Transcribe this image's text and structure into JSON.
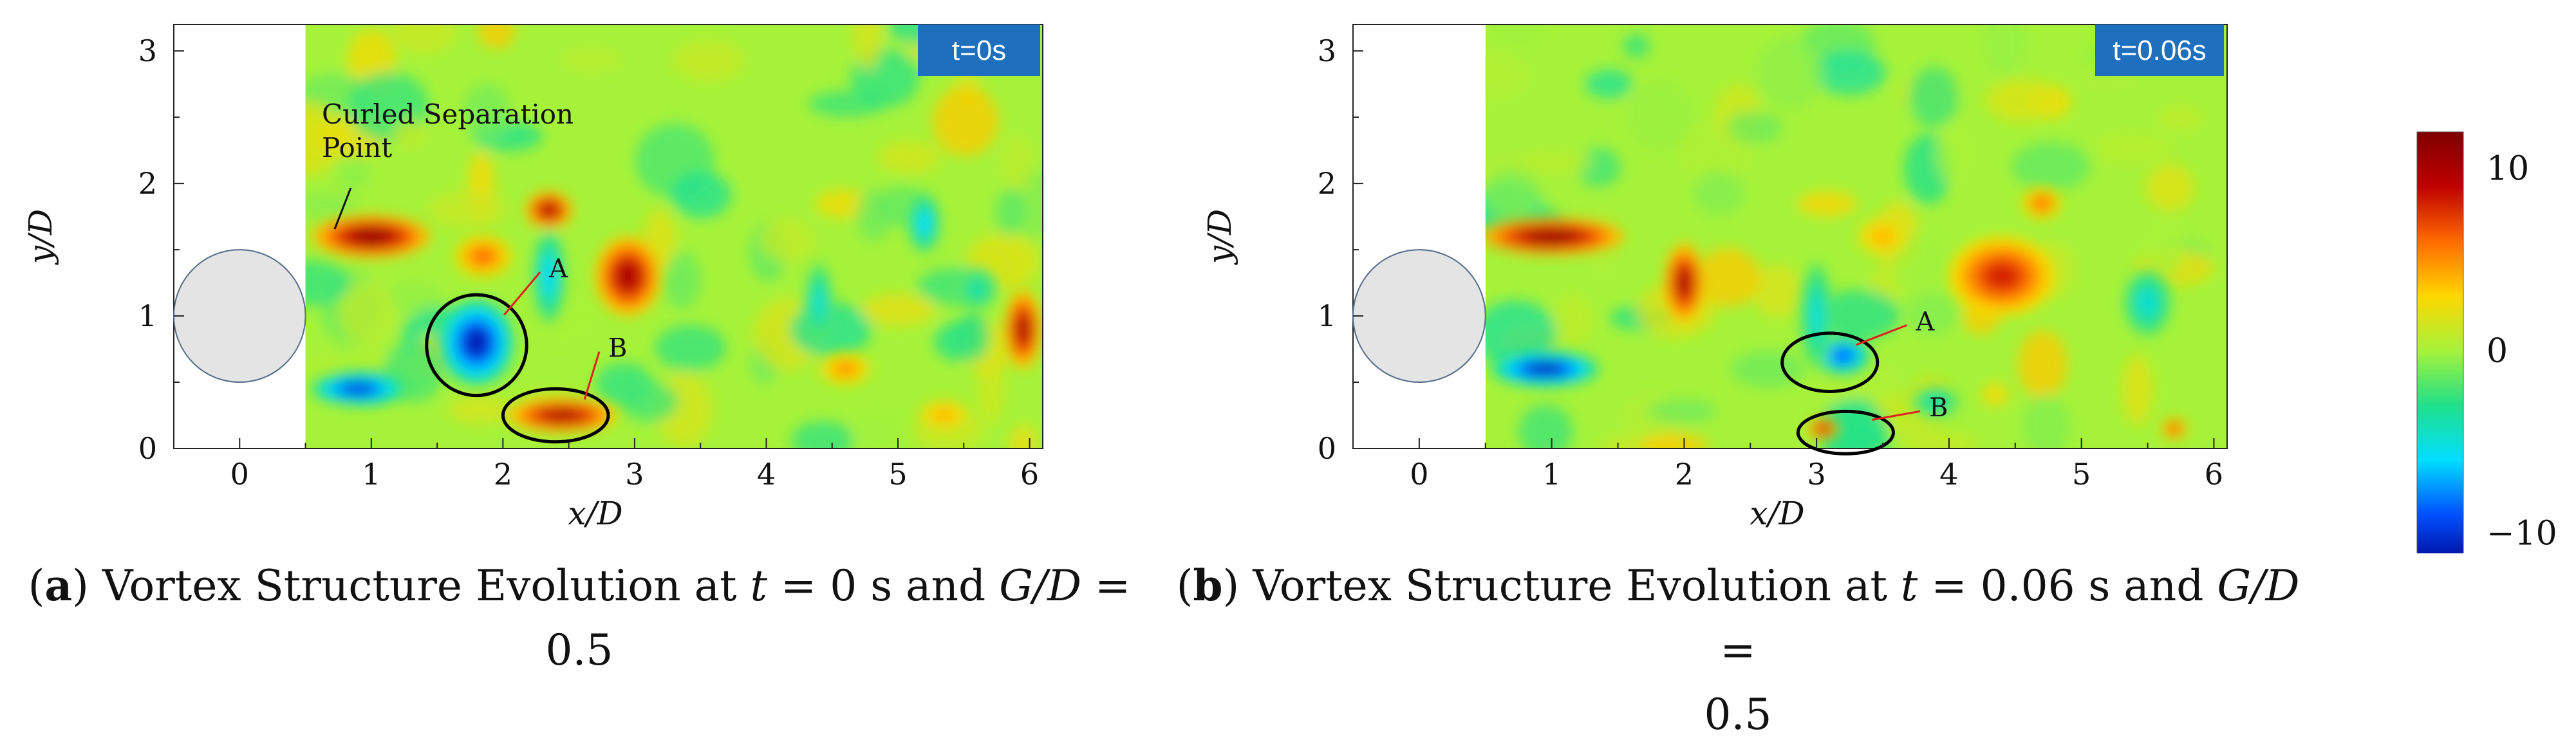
{
  "panels": [
    {
      "id": "a",
      "time_badge": "t=0s",
      "annotation": "Curled Separation\nPoint",
      "vortex_labels": [
        "A",
        "B"
      ],
      "caption": {
        "letter": "a",
        "pre": "Vortex Structure Evolution at ",
        "t_var": "t",
        "t_value": " = 0 s and ",
        "g_var": "G/D",
        "tail": " =",
        "line2": "0.5"
      }
    },
    {
      "id": "b",
      "time_badge": "t=0.06s",
      "annotation": "",
      "vortex_labels": [
        "A",
        "B"
      ],
      "caption": {
        "letter": "b",
        "pre": "Vortex Structure Evolution at ",
        "t_var": "t",
        "t_value": " = 0.06 s and ",
        "g_var": "G/D",
        "tail": " =",
        "line2": "0.5"
      }
    }
  ],
  "chart_data": [
    {
      "type": "heatmap",
      "title": "",
      "xlabel": "x/D",
      "ylabel": "y/D",
      "xlim": [
        -0.5,
        6.1
      ],
      "ylim": [
        0,
        3.2
      ],
      "x_ticks": [
        0,
        1,
        2,
        3,
        4,
        5,
        6
      ],
      "y_ticks": [
        0,
        1,
        2,
        3
      ],
      "cylinder": {
        "center_x": 0,
        "center_y": 1,
        "diameter": 1
      },
      "blanked_region_x": [
        -0.5,
        0.5
      ],
      "colorscale": {
        "min": -12,
        "max": 12,
        "ticks": [
          10,
          0,
          -10
        ],
        "colors": [
          "#00008f",
          "#0050ff",
          "#00dfff",
          "#1fe08a",
          "#a6f23a",
          "#ffd700",
          "#ff6a00",
          "#c00000",
          "#800000"
        ]
      },
      "features": [
        {
          "kind": "positive",
          "x": 1.0,
          "y": 1.6,
          "sx": 0.45,
          "sy": 0.16,
          "amp": 11
        },
        {
          "kind": "positive",
          "x": 1.85,
          "y": 1.45,
          "sx": 0.22,
          "sy": 0.16,
          "amp": 6
        },
        {
          "kind": "positive",
          "x": 2.35,
          "y": 1.8,
          "sx": 0.18,
          "sy": 0.14,
          "amp": 10
        },
        {
          "kind": "positive",
          "x": 2.95,
          "y": 1.3,
          "sx": 0.25,
          "sy": 0.3,
          "amp": 10
        },
        {
          "kind": "positive",
          "x": 2.45,
          "y": 0.25,
          "sx": 0.42,
          "sy": 0.13,
          "amp": 10
        },
        {
          "kind": "positive",
          "x": 5.95,
          "y": 0.9,
          "sx": 0.14,
          "sy": 0.3,
          "amp": 10
        },
        {
          "kind": "positive",
          "x": 4.6,
          "y": 0.6,
          "sx": 0.2,
          "sy": 0.12,
          "amp": 5
        },
        {
          "kind": "positive",
          "x": 5.35,
          "y": 0.25,
          "sx": 0.2,
          "sy": 0.12,
          "amp": 4
        },
        {
          "kind": "negative",
          "x": 1.8,
          "y": 0.8,
          "sx": 0.28,
          "sy": 0.32,
          "amp": -11
        },
        {
          "kind": "negative",
          "x": 0.9,
          "y": 0.45,
          "sx": 0.35,
          "sy": 0.12,
          "amp": -10
        },
        {
          "kind": "negative",
          "x": 2.35,
          "y": 1.3,
          "sx": 0.12,
          "sy": 0.35,
          "amp": -6
        },
        {
          "kind": "negative",
          "x": 5.2,
          "y": 1.7,
          "sx": 0.12,
          "sy": 0.22,
          "amp": -6
        },
        {
          "kind": "negative",
          "x": 4.4,
          "y": 1.1,
          "sx": 0.1,
          "sy": 0.3,
          "amp": -5
        },
        {
          "kind": "negative",
          "x": 5.6,
          "y": 1.2,
          "sx": 0.15,
          "sy": 0.15,
          "amp": -4
        }
      ],
      "vortex_ellipses": [
        {
          "label": "A",
          "cx": 1.8,
          "cy": 0.78,
          "rx": 0.38,
          "ry": 0.38,
          "label_x": 2.35,
          "label_y": 1.35
        },
        {
          "label": "B",
          "cx": 2.4,
          "cy": 0.25,
          "rx": 0.4,
          "ry": 0.2,
          "label_x": 2.8,
          "label_y": 0.75
        }
      ]
    },
    {
      "type": "heatmap",
      "title": "",
      "xlabel": "x/D",
      "ylabel": "y/D",
      "xlim": [
        -0.5,
        6.1
      ],
      "ylim": [
        0,
        3.2
      ],
      "x_ticks": [
        0,
        1,
        2,
        3,
        4,
        5,
        6
      ],
      "y_ticks": [
        0,
        1,
        2,
        3
      ],
      "cylinder": {
        "center_x": 0,
        "center_y": 1,
        "diameter": 1
      },
      "blanked_region_x": [
        -0.5,
        0.5
      ],
      "colorscale": {
        "min": -12,
        "max": 12,
        "ticks": [
          10,
          0,
          -10
        ],
        "colors": [
          "#00008f",
          "#0050ff",
          "#00dfff",
          "#1fe08a",
          "#a6f23a",
          "#ffd700",
          "#ff6a00",
          "#c00000",
          "#800000"
        ]
      },
      "features": [
        {
          "kind": "positive",
          "x": 1.0,
          "y": 1.6,
          "sx": 0.55,
          "sy": 0.14,
          "amp": 11
        },
        {
          "kind": "positive",
          "x": 2.0,
          "y": 1.25,
          "sx": 0.15,
          "sy": 0.3,
          "amp": 10
        },
        {
          "kind": "positive",
          "x": 4.4,
          "y": 1.3,
          "sx": 0.4,
          "sy": 0.3,
          "amp": 8
        },
        {
          "kind": "positive",
          "x": 4.7,
          "y": 1.85,
          "sx": 0.15,
          "sy": 0.12,
          "amp": 6
        },
        {
          "kind": "positive",
          "x": 3.05,
          "y": 0.15,
          "sx": 0.12,
          "sy": 0.08,
          "amp": 9
        },
        {
          "kind": "positive",
          "x": 5.7,
          "y": 0.15,
          "sx": 0.1,
          "sy": 0.08,
          "amp": 7
        },
        {
          "kind": "positive",
          "x": 3.5,
          "y": 1.6,
          "sx": 0.2,
          "sy": 0.15,
          "amp": 4
        },
        {
          "kind": "negative",
          "x": 0.95,
          "y": 0.6,
          "sx": 0.4,
          "sy": 0.13,
          "amp": -11
        },
        {
          "kind": "negative",
          "x": 3.2,
          "y": 0.7,
          "sx": 0.2,
          "sy": 0.14,
          "amp": -9
        },
        {
          "kind": "negative",
          "x": 3.0,
          "y": 1.0,
          "sx": 0.12,
          "sy": 0.4,
          "amp": -5
        },
        {
          "kind": "negative",
          "x": 5.5,
          "y": 1.1,
          "sx": 0.18,
          "sy": 0.25,
          "amp": -5
        },
        {
          "kind": "negative",
          "x": 3.9,
          "y": 0.35,
          "sx": 0.18,
          "sy": 0.12,
          "amp": -4
        }
      ],
      "vortex_ellipses": [
        {
          "label": "A",
          "cx": 3.1,
          "cy": 0.65,
          "rx": 0.36,
          "ry": 0.22,
          "label_x": 3.75,
          "label_y": 0.95
        },
        {
          "label": "B",
          "cx": 3.22,
          "cy": 0.12,
          "rx": 0.36,
          "ry": 0.16,
          "label_x": 3.85,
          "label_y": 0.3
        }
      ]
    }
  ],
  "colorbar": {
    "ticks": [
      "10",
      "0",
      "−10"
    ]
  }
}
